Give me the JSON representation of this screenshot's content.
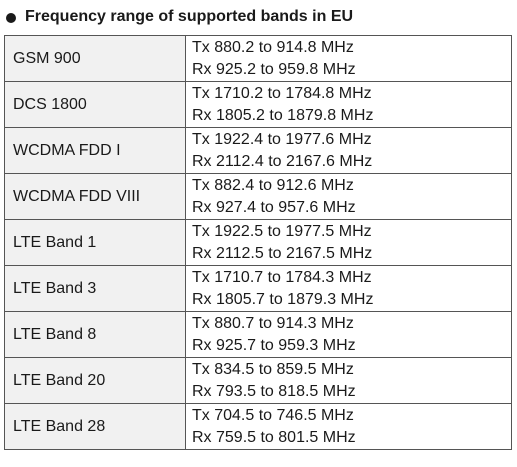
{
  "heading": {
    "title": "Frequency range of supported bands in EU"
  },
  "rows": [
    {
      "band": "GSM 900",
      "tx": "Tx 880.2 to 914.8 MHz",
      "rx": "Rx 925.2 to 959.8 MHz"
    },
    {
      "band": "DCS 1800",
      "tx": "Tx 1710.2 to 1784.8 MHz",
      "rx": "Rx 1805.2 to 1879.8 MHz"
    },
    {
      "band": "WCDMA FDD I",
      "tx": "Tx 1922.4 to 1977.6 MHz",
      "rx": "Rx 2112.4 to 2167.6 MHz"
    },
    {
      "band": "WCDMA FDD VIII",
      "tx": "Tx 882.4 to 912.6 MHz",
      "rx": "Rx 927.4 to 957.6 MHz"
    },
    {
      "band": "LTE Band 1",
      "tx": "Tx 1922.5 to 1977.5 MHz",
      "rx": "Rx 2112.5 to 2167.5 MHz"
    },
    {
      "band": "LTE Band 3",
      "tx": "Tx 1710.7 to 1784.3 MHz",
      "rx": "Rx 1805.7 to 1879.3 MHz"
    },
    {
      "band": "LTE Band 8",
      "tx": "Tx 880.7 to 914.3 MHz",
      "rx": "Rx 925.7 to 959.3 MHz"
    },
    {
      "band": "LTE Band 20",
      "tx": "Tx 834.5 to 859.5 MHz",
      "rx": "Rx 793.5 to 818.5 MHz"
    },
    {
      "band": "LTE Band 28",
      "tx": "Tx 704.5 to 746.5 MHz",
      "rx": "Rx 759.5 to 801.5 MHz"
    }
  ]
}
